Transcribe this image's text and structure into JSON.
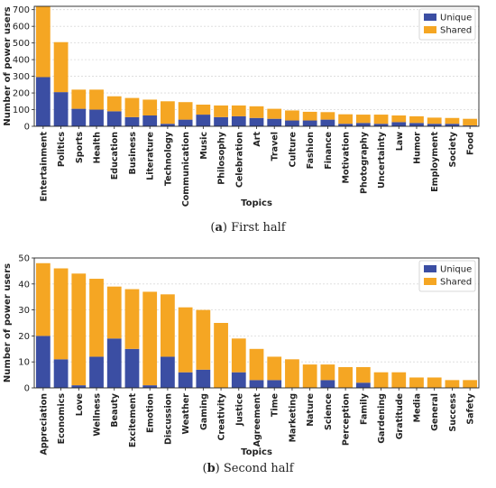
{
  "captions": {
    "a_tag": "a",
    "a_text": "First half",
    "b_tag": "b",
    "b_text": "Second half"
  },
  "colors": {
    "unique": "#3b4ea3",
    "shared": "#f5a623"
  },
  "chart_data": [
    {
      "type": "bar",
      "stacked": true,
      "xlabel": "Topics",
      "ylabel": "Number of power users",
      "ylim": [
        0,
        720
      ],
      "yticks": [
        0,
        100,
        200,
        300,
        400,
        500,
        600,
        700
      ],
      "grid": true,
      "legend": "top-right",
      "categories": [
        "Entertainment",
        "Politics",
        "Sports",
        "Health",
        "Education",
        "Business",
        "Literature",
        "Technology",
        "Communication",
        "Music",
        "Philosophy",
        "Celebration",
        "Art",
        "Travel",
        "Culture",
        "Fashion",
        "Finance",
        "Motivation",
        "Photography",
        "Uncertainty",
        "Law",
        "Humor",
        "Employment",
        "Society",
        "Food"
      ],
      "series": [
        {
          "name": "Unique",
          "values": [
            295,
            205,
            105,
            100,
            90,
            55,
            65,
            15,
            40,
            70,
            55,
            60,
            50,
            45,
            35,
            35,
            40,
            15,
            20,
            15,
            25,
            20,
            15,
            15,
            5
          ]
        },
        {
          "name": "Shared",
          "values": [
            425,
            300,
            115,
            120,
            90,
            115,
            95,
            135,
            105,
            60,
            70,
            65,
            70,
            60,
            60,
            52,
            45,
            57,
            50,
            55,
            40,
            40,
            37,
            35,
            40
          ]
        }
      ]
    },
    {
      "type": "bar",
      "stacked": true,
      "xlabel": "Topics",
      "ylabel": "Number of power users",
      "ylim": [
        0,
        50
      ],
      "yticks": [
        0,
        10,
        20,
        30,
        40,
        50
      ],
      "grid": true,
      "legend": "top-right",
      "categories": [
        "Appreciation",
        "Economics",
        "Love",
        "Wellness",
        "Beauty",
        "Excitement",
        "Emotion",
        "Discussion",
        "Weather",
        "Gaming",
        "Creativity",
        "Justice",
        "Agreement",
        "Time",
        "Marketing",
        "Nature",
        "Science",
        "Perception",
        "Family",
        "Gardening",
        "Gratitude",
        "Media",
        "General",
        "Success",
        "Safety"
      ],
      "series": [
        {
          "name": "Unique",
          "values": [
            20,
            11,
            1,
            12,
            19,
            15,
            1,
            12,
            6,
            7,
            0,
            6,
            3,
            3,
            0,
            0,
            3,
            0,
            2,
            0,
            0,
            0,
            0,
            0,
            0
          ]
        },
        {
          "name": "Shared",
          "values": [
            28,
            35,
            43,
            30,
            20,
            23,
            36,
            24,
            25,
            23,
            25,
            13,
            12,
            9,
            11,
            9,
            6,
            8,
            6,
            6,
            6,
            4,
            4,
            3,
            3
          ]
        }
      ]
    }
  ]
}
